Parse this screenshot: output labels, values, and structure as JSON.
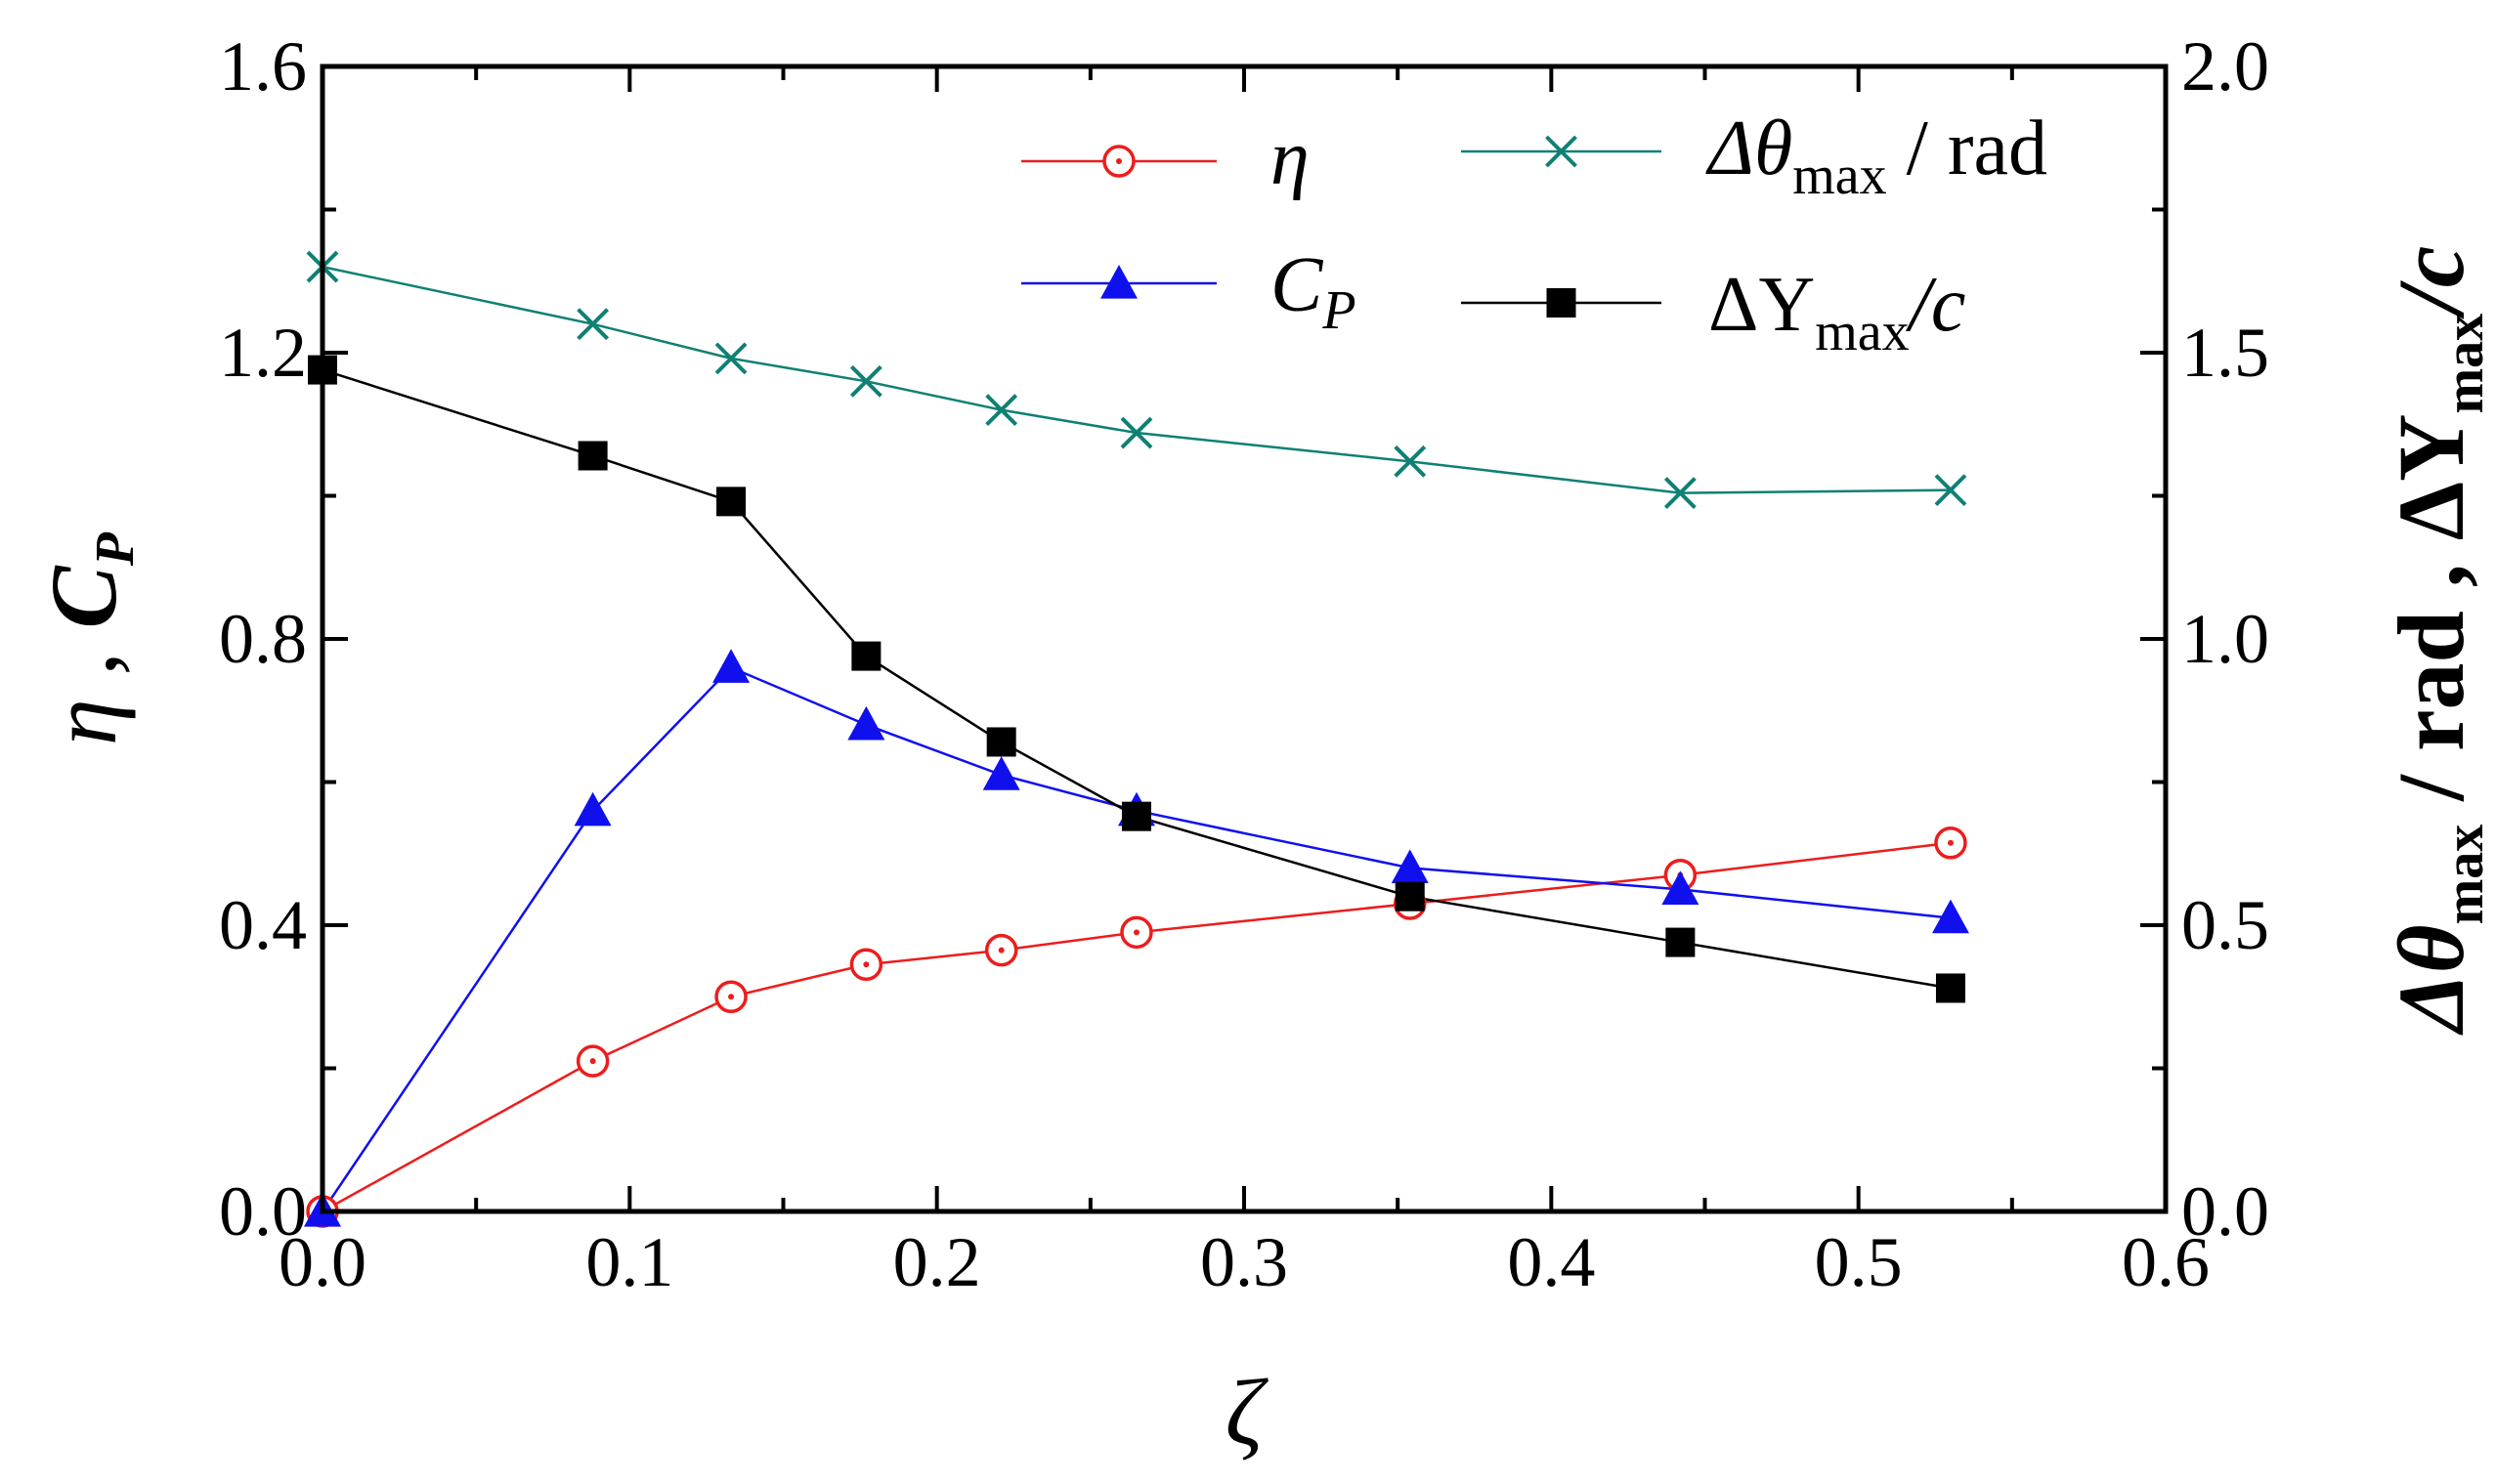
{
  "chart_data": {
    "type": "line",
    "x": [
      0.0,
      0.088,
      0.133,
      0.177,
      0.221,
      0.265,
      0.354,
      0.442,
      0.53
    ],
    "xlabel": "ζ",
    "xlim": [
      0.0,
      0.6
    ],
    "x_ticks": [
      "0.0",
      "0.1",
      "0.2",
      "0.3",
      "0.4",
      "0.5",
      "0.6"
    ],
    "ylim_left": [
      0.0,
      1.6
    ],
    "y_ticks_left": [
      "0.0",
      "0.4",
      "0.8",
      "1.2",
      "1.6"
    ],
    "ylim_right": [
      0.0,
      2.0
    ],
    "y_ticks_right": [
      "0.0",
      "0.5",
      "1.0",
      "1.5",
      "2.0"
    ],
    "ylabel_left": {
      "part1": "η",
      "sep1": " , ",
      "part2": "C",
      "part2_sub": "P"
    },
    "ylabel_right": {
      "part1": "Δθ",
      "part1_sub": "max",
      "part1_rest": " / rad",
      "sep": " , ",
      "part2": "ΔY",
      "part2_sub": "max",
      "part2_rest": "/c"
    },
    "series": [
      {
        "id": "eta",
        "name": "η",
        "axis": "left",
        "color": "#ee1c1c",
        "marker": "circle-dot",
        "values": [
          0.0,
          0.21,
          0.3,
          0.345,
          0.365,
          0.39,
          0.43,
          0.47,
          0.515
        ]
      },
      {
        "id": "cp",
        "name": "C",
        "name_sub": "P",
        "axis": "left",
        "color": "#1010ee",
        "marker": "triangle",
        "values": [
          0.0,
          0.56,
          0.76,
          0.68,
          0.61,
          0.56,
          0.48,
          0.45,
          0.41
        ]
      },
      {
        "id": "dtheta",
        "name": "Δθ",
        "name_sub": "max",
        "name_rest": " / rad",
        "axis": "right",
        "color": "#0f8074",
        "marker": "x",
        "values": [
          1.65,
          1.55,
          1.49,
          1.45,
          1.4,
          1.36,
          1.31,
          1.255,
          1.26
        ]
      },
      {
        "id": "dy",
        "name": "ΔY",
        "name_sub": "max",
        "name_rest": "/c",
        "axis": "right",
        "color": "#000000",
        "marker": "square",
        "values": [
          1.47,
          1.32,
          1.24,
          0.97,
          0.82,
          0.69,
          0.55,
          0.47,
          0.39
        ]
      }
    ]
  }
}
